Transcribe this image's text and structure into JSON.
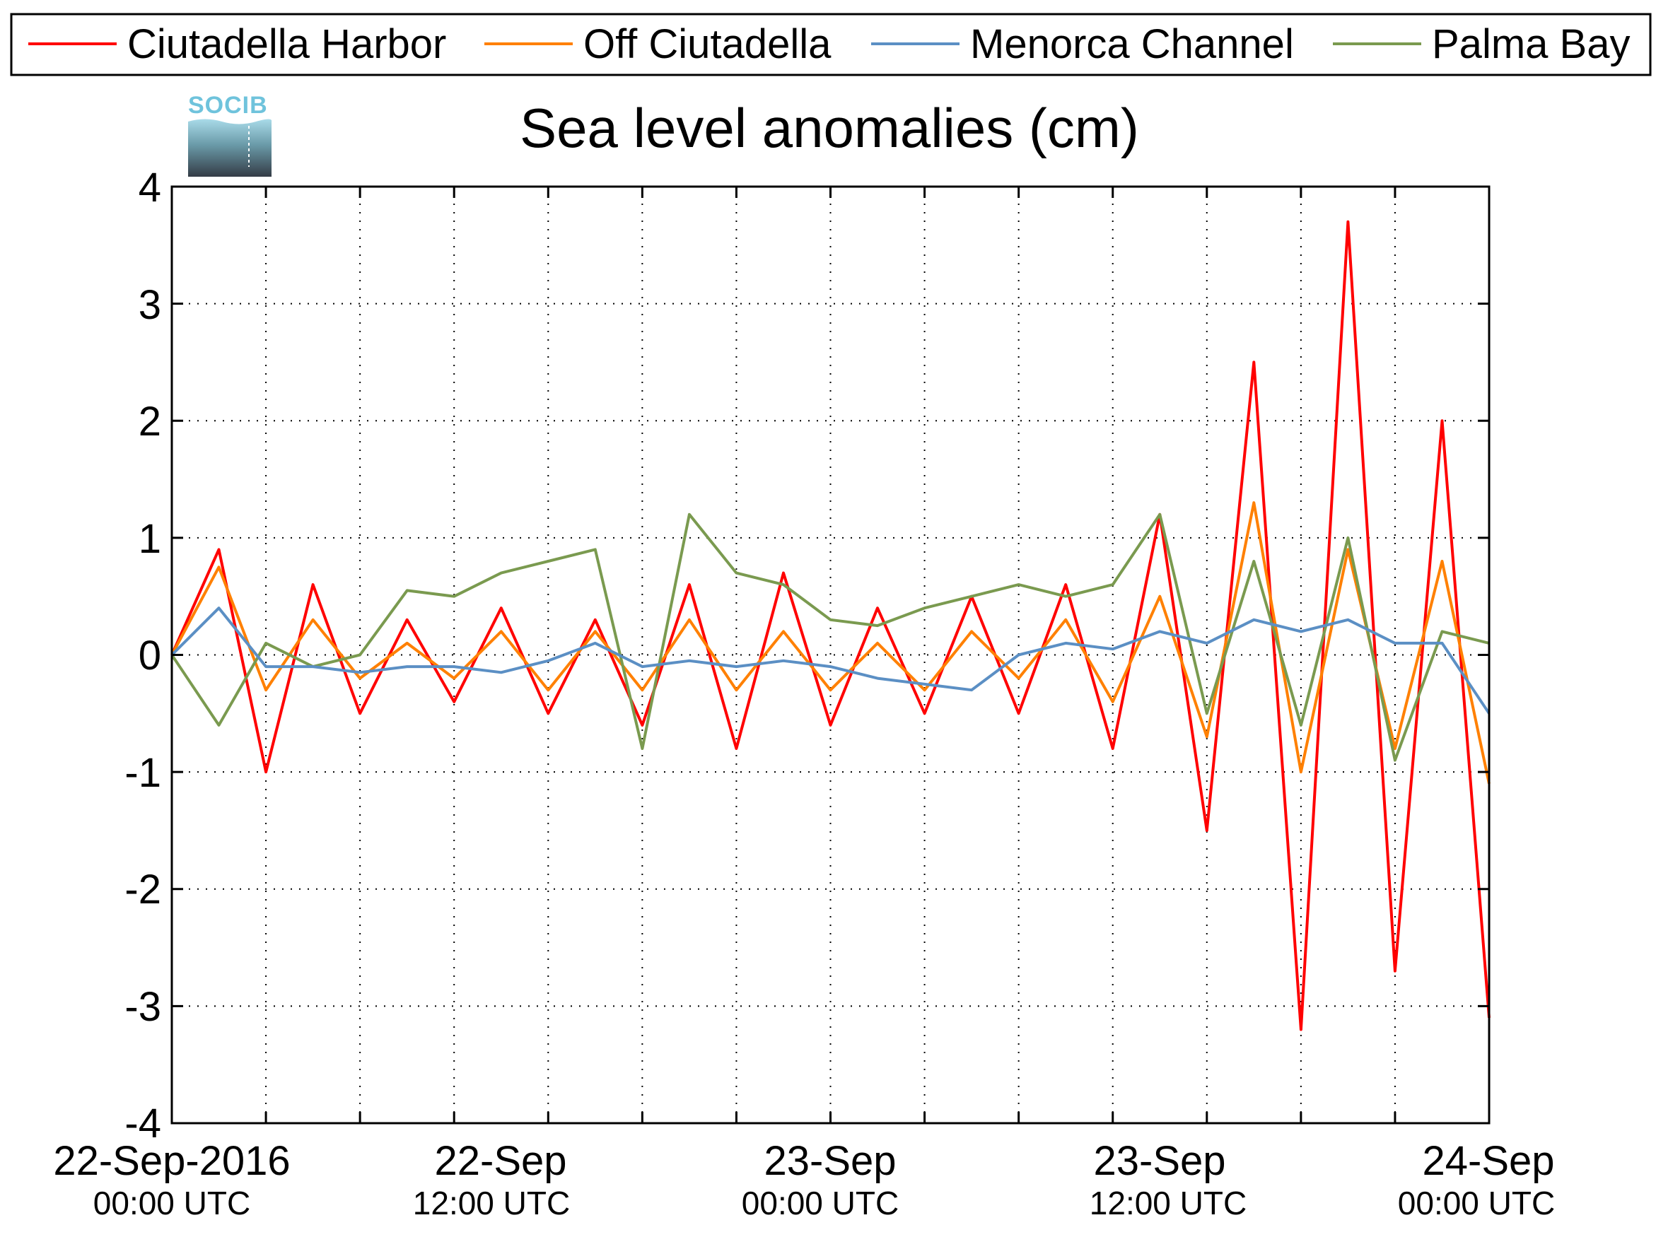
{
  "chart_data": {
    "type": "line",
    "title": "Sea level anomalies (cm)",
    "logo": {
      "text": "SOCIB"
    },
    "xlabel": "",
    "ylabel": "",
    "x_range": [
      "22-Sep-2016 00:00 UTC",
      "24-Sep-2016 08:00 UTC"
    ],
    "ylim": [
      -4,
      4
    ],
    "y_ticks": [
      "4",
      "3",
      "2",
      "1",
      "0",
      "-1",
      "-2",
      "-3",
      "-4"
    ],
    "x_ticks": [
      {
        "date": "22-Sep-2016",
        "time": "00:00 UTC"
      },
      {
        "date": "22-Sep",
        "time": "12:00 UTC"
      },
      {
        "date": "23-Sep",
        "time": "00:00 UTC"
      },
      {
        "date": "23-Sep",
        "time": "12:00 UTC"
      },
      {
        "date": "24-Sep",
        "time": "00:00 UTC"
      }
    ],
    "grid": true,
    "legend_position": "top",
    "series": [
      {
        "name": "Ciutadella Harbor",
        "color": "#ff0000",
        "x": [
          "22-Sep 00:00",
          "22-Sep 02:00",
          "22-Sep 04:00",
          "22-Sep 06:00",
          "22-Sep 08:00",
          "22-Sep 10:00",
          "22-Sep 12:00",
          "22-Sep 14:00",
          "22-Sep 16:00",
          "22-Sep 18:00",
          "22-Sep 20:00",
          "22-Sep 22:00",
          "23-Sep 00:00",
          "23-Sep 02:00",
          "23-Sep 04:00",
          "23-Sep 06:00",
          "23-Sep 08:00",
          "23-Sep 10:00",
          "23-Sep 12:00",
          "23-Sep 14:00",
          "23-Sep 16:00",
          "23-Sep 18:00",
          "23-Sep 20:00",
          "23-Sep 22:00",
          "24-Sep 00:00",
          "24-Sep 02:00",
          "24-Sep 04:00",
          "24-Sep 06:00",
          "24-Sep 08:00"
        ],
        "y": [
          0.0,
          0.9,
          -1.0,
          0.6,
          -0.5,
          0.3,
          -0.4,
          0.4,
          -0.5,
          0.3,
          -0.6,
          0.6,
          -0.8,
          0.7,
          -0.6,
          0.4,
          -0.5,
          0.5,
          -0.5,
          0.6,
          -0.8,
          1.2,
          -1.5,
          2.5,
          -3.2,
          3.7,
          -2.7,
          2.0,
          -3.1
        ]
      },
      {
        "name": "Off Ciutadella",
        "color": "#ff8000",
        "x": [
          "22-Sep 00:00",
          "22-Sep 02:00",
          "22-Sep 04:00",
          "22-Sep 06:00",
          "22-Sep 08:00",
          "22-Sep 10:00",
          "22-Sep 12:00",
          "22-Sep 14:00",
          "22-Sep 16:00",
          "22-Sep 18:00",
          "22-Sep 20:00",
          "22-Sep 22:00",
          "23-Sep 00:00",
          "23-Sep 02:00",
          "23-Sep 04:00",
          "23-Sep 06:00",
          "23-Sep 08:00",
          "23-Sep 10:00",
          "23-Sep 12:00",
          "23-Sep 14:00",
          "23-Sep 16:00",
          "23-Sep 18:00",
          "23-Sep 20:00",
          "23-Sep 22:00",
          "24-Sep 00:00",
          "24-Sep 02:00",
          "24-Sep 04:00",
          "24-Sep 06:00",
          "24-Sep 08:00"
        ],
        "y": [
          0.0,
          0.75,
          -0.3,
          0.3,
          -0.2,
          0.1,
          -0.2,
          0.2,
          -0.3,
          0.2,
          -0.3,
          0.3,
          -0.3,
          0.2,
          -0.3,
          0.1,
          -0.3,
          0.2,
          -0.2,
          0.3,
          -0.4,
          0.5,
          -0.7,
          1.3,
          -1.0,
          0.9,
          -0.8,
          0.8,
          -1.1
        ]
      },
      {
        "name": "Menorca Channel",
        "color": "#5b8fc4",
        "x": [
          "22-Sep 00:00",
          "22-Sep 02:00",
          "22-Sep 04:00",
          "22-Sep 06:00",
          "22-Sep 08:00",
          "22-Sep 10:00",
          "22-Sep 12:00",
          "22-Sep 14:00",
          "22-Sep 16:00",
          "22-Sep 18:00",
          "22-Sep 20:00",
          "22-Sep 22:00",
          "23-Sep 00:00",
          "23-Sep 02:00",
          "23-Sep 04:00",
          "23-Sep 06:00",
          "23-Sep 08:00",
          "23-Sep 10:00",
          "23-Sep 12:00",
          "23-Sep 14:00",
          "23-Sep 16:00",
          "23-Sep 18:00",
          "23-Sep 20:00",
          "23-Sep 22:00",
          "24-Sep 00:00",
          "24-Sep 02:00",
          "24-Sep 04:00",
          "24-Sep 06:00",
          "24-Sep 08:00"
        ],
        "y": [
          0.0,
          0.4,
          -0.1,
          -0.1,
          -0.15,
          -0.1,
          -0.1,
          -0.15,
          -0.05,
          0.1,
          -0.1,
          -0.05,
          -0.1,
          -0.05,
          -0.1,
          -0.2,
          -0.25,
          -0.3,
          0.0,
          0.1,
          0.05,
          0.2,
          0.1,
          0.3,
          0.2,
          0.3,
          0.1,
          0.1,
          -0.5
        ]
      },
      {
        "name": "Palma Bay",
        "color": "#7a9a4f",
        "x": [
          "22-Sep 00:00",
          "22-Sep 02:00",
          "22-Sep 04:00",
          "22-Sep 06:00",
          "22-Sep 08:00",
          "22-Sep 10:00",
          "22-Sep 12:00",
          "22-Sep 14:00",
          "22-Sep 16:00",
          "22-Sep 18:00",
          "22-Sep 20:00",
          "22-Sep 22:00",
          "23-Sep 00:00",
          "23-Sep 02:00",
          "23-Sep 04:00",
          "23-Sep 06:00",
          "23-Sep 08:00",
          "23-Sep 10:00",
          "23-Sep 12:00",
          "23-Sep 14:00",
          "23-Sep 16:00",
          "23-Sep 18:00",
          "23-Sep 20:00",
          "23-Sep 22:00",
          "24-Sep 00:00",
          "24-Sep 02:00",
          "24-Sep 04:00",
          "24-Sep 06:00",
          "24-Sep 08:00"
        ],
        "y": [
          0.0,
          -0.6,
          0.1,
          -0.1,
          0.0,
          0.55,
          0.5,
          0.7,
          0.8,
          0.9,
          -0.8,
          1.2,
          0.7,
          0.6,
          0.3,
          0.25,
          0.4,
          0.5,
          0.6,
          0.5,
          0.6,
          1.2,
          -0.5,
          0.8,
          -0.6,
          1.0,
          -0.9,
          0.2,
          0.1
        ]
      }
    ]
  }
}
